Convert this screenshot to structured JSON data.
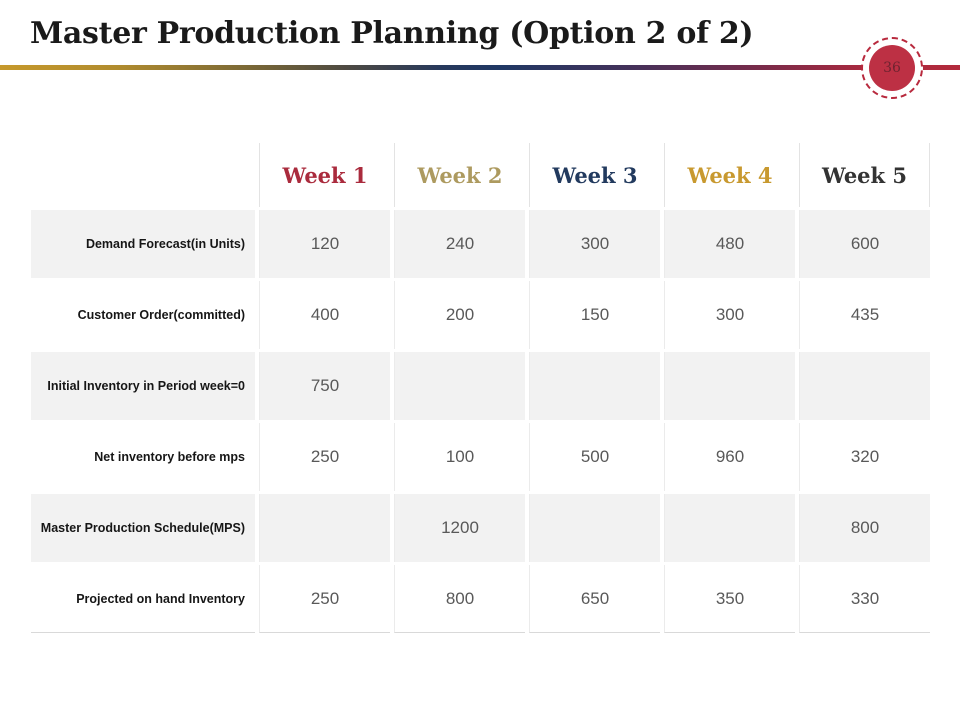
{
  "header": {
    "title": "Master Production Planning (Option 2 of 2)",
    "page_number": "36"
  },
  "colors": {
    "badge_fill": "#bd3044",
    "badge_ring": "#b8293d",
    "divider_gold": "#c6992c",
    "divider_navy": "#1f3864",
    "divider_crimson": "#b22a3c",
    "row_alt_background": "#f2f2f2",
    "value_text": "#595959"
  },
  "table": {
    "columns": [
      "",
      "Week 1",
      "Week 2",
      "Week 3",
      "Week 4",
      "Week 5"
    ],
    "header_colors": [
      "#aa2b3d",
      "#ad9a5f",
      "#223a5e",
      "#c8992f",
      "#333333"
    ],
    "rows": [
      {
        "label": "Demand Forecast(in Units)",
        "values": [
          "120",
          "240",
          "300",
          "480",
          "600"
        ]
      },
      {
        "label": "Customer Order(committed)",
        "values": [
          "400",
          "200",
          "150",
          "300",
          "435"
        ]
      },
      {
        "label": "Initial Inventory in Period week=0",
        "values": [
          "750",
          "",
          "",
          "",
          ""
        ]
      },
      {
        "label": "Net inventory before mps",
        "values": [
          "250",
          "100",
          "500",
          "960",
          "320"
        ]
      },
      {
        "label": "Master Production Schedule(MPS)",
        "values": [
          "",
          "1200",
          "",
          "",
          "800"
        ]
      },
      {
        "label": "Projected on hand Inventory",
        "values": [
          "250",
          "800",
          "650",
          "350",
          "330"
        ]
      }
    ]
  }
}
